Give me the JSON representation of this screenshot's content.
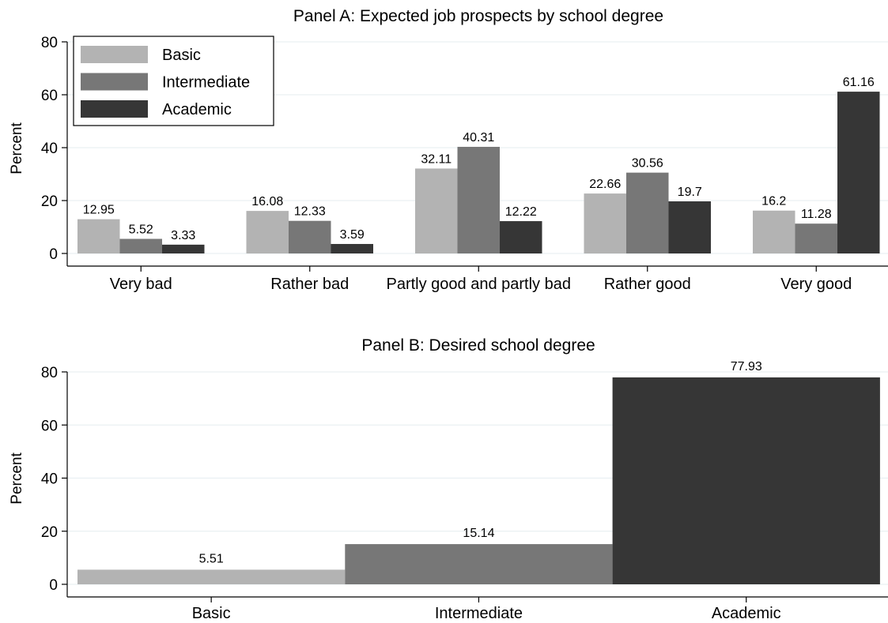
{
  "colors": {
    "Basic": "#b3b3b3",
    "Intermediate": "#777777",
    "Academic": "#363636"
  },
  "chart_data": [
    {
      "type": "bar",
      "title": "Panel A: Expected job prospects by school degree",
      "ylabel": "Percent",
      "ylim": [
        0,
        80
      ],
      "yticks": [
        0,
        20,
        40,
        60,
        80
      ],
      "grid": true,
      "legend_position": "top-left",
      "categories": [
        "Very bad",
        "Rather bad",
        "Partly good and partly bad",
        "Rather good",
        "Very good"
      ],
      "series": [
        {
          "name": "Basic",
          "values": [
            12.95,
            16.08,
            32.11,
            22.66,
            16.2
          ]
        },
        {
          "name": "Intermediate",
          "values": [
            5.52,
            12.33,
            40.31,
            30.56,
            11.28
          ]
        },
        {
          "name": "Academic",
          "values": [
            3.33,
            3.59,
            12.22,
            19.7,
            61.16
          ]
        }
      ]
    },
    {
      "type": "bar",
      "title": "Panel B: Desired school degree",
      "ylabel": "Percent",
      "ylim": [
        0,
        80
      ],
      "yticks": [
        0,
        20,
        40,
        60,
        80
      ],
      "grid": true,
      "categories": [
        "Basic",
        "Intermediate",
        "Academic"
      ],
      "values": [
        5.51,
        15.14,
        77.93
      ],
      "colors": [
        "#b3b3b3",
        "#777777",
        "#363636"
      ]
    }
  ]
}
